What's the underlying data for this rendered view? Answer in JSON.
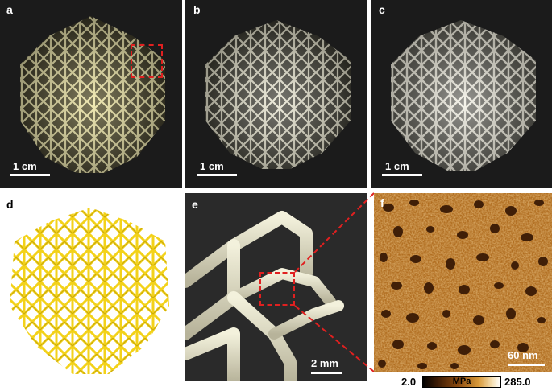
{
  "panels": {
    "a": {
      "label": "a",
      "scale_text": "1 cm"
    },
    "b": {
      "label": "b",
      "scale_text": "1 cm"
    },
    "c": {
      "label": "c",
      "scale_text": "1 cm"
    },
    "d": {
      "label": "d"
    },
    "e": {
      "label": "e",
      "scale_text": "2 mm"
    },
    "f": {
      "label": "f",
      "scale_text": "60 nm"
    }
  },
  "colorbar": {
    "min": "2.0",
    "unit": "MPa",
    "max": "285.0"
  },
  "colors": {
    "photo_bg": "#1b1b1b",
    "lattice_a": "#ece6b0",
    "lattice_b": "#e9e6cf",
    "lattice_c": "#f2efe0",
    "render_yellow": "#f3d21a",
    "highlight_box": "#e02020",
    "afm_dark": "#3a1a05",
    "afm_light": "#e2a646"
  }
}
